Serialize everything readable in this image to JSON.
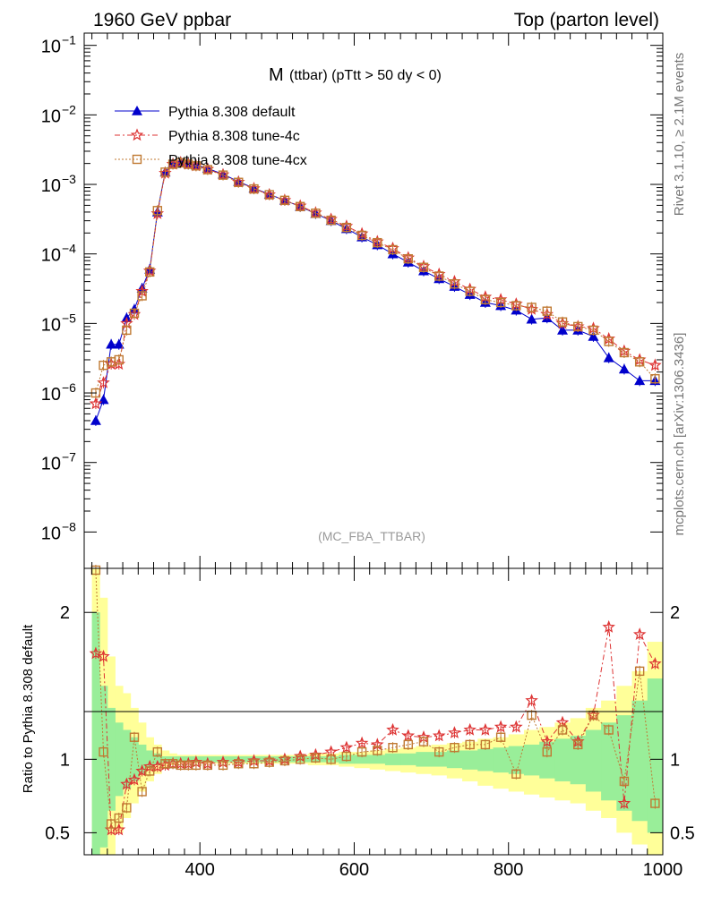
{
  "header": {
    "left": "1960 GeV ppbar",
    "right": "Top (parton level)"
  },
  "side_labels": {
    "rivet": "Rivet 3.1.10, ≥ 2.1M events",
    "source": "mcplots.cern.ch [arXiv:1306.3436]"
  },
  "plot_title": {
    "main": "M",
    "sub": "(ttbar) (pTtt > 50 dy < 0)"
  },
  "watermark": "(MC_FBA_TTBAR)",
  "ratio_ylabel": "Ratio to Pythia 8.308 default",
  "chart_data": [
    {
      "type": "line",
      "panel": "main",
      "yscale": "log",
      "xlim": [
        250,
        1000
      ],
      "ylim": [
        3e-09,
        0.15
      ],
      "yticks": [
        {
          "value": 1e-08,
          "label": "10",
          "exp": "−8"
        },
        {
          "value": 1e-07,
          "label": "10",
          "exp": "−7"
        },
        {
          "value": 1e-06,
          "label": "10",
          "exp": "−6"
        },
        {
          "value": 1e-05,
          "label": "10",
          "exp": "−5"
        },
        {
          "value": 0.0001,
          "label": "10",
          "exp": "−4"
        },
        {
          "value": 0.001,
          "label": "10",
          "exp": "−3"
        },
        {
          "value": 0.01,
          "label": "10",
          "exp": "−2"
        },
        {
          "value": 0.1,
          "label": "10",
          "exp": "−1"
        }
      ],
      "legend_position": "top-left",
      "series": [
        {
          "name": "Pythia 8.308 default",
          "color": "#0000cc",
          "marker": "triangle",
          "x": [
            265,
            275,
            285,
            295,
            305,
            315,
            325,
            335,
            345,
            355,
            365,
            375,
            385,
            395,
            410,
            430,
            450,
            470,
            490,
            510,
            530,
            550,
            570,
            590,
            610,
            630,
            650,
            670,
            690,
            710,
            730,
            750,
            770,
            790,
            810,
            830,
            850,
            870,
            890,
            910,
            930,
            950,
            970,
            990
          ],
          "y": [
            4e-07,
            8e-07,
            5e-06,
            5e-06,
            1.2e-05,
            1.6e-05,
            3.2e-05,
            6e-05,
            0.0004,
            0.0015,
            0.002,
            0.0021,
            0.002,
            0.0019,
            0.0017,
            0.0014,
            0.0011,
            0.00088,
            0.00072,
            0.00059,
            0.00048,
            0.00038,
            0.0003,
            0.00023,
            0.000175,
            0.000135,
            0.0001,
            7.6e-05,
            5.7e-05,
            4.4e-05,
            3.4e-05,
            2.6e-05,
            2e-05,
            1.8e-05,
            1.55e-05,
            1.15e-05,
            1.2e-05,
            8e-06,
            8e-06,
            6.5e-06,
            3.2e-06,
            2.2e-06,
            1.5e-06,
            1.5e-06
          ]
        },
        {
          "name": "Pythia 8.308 tune-4c",
          "color": "#dd3333",
          "marker": "star",
          "x": [
            265,
            275,
            285,
            295,
            305,
            315,
            325,
            335,
            345,
            355,
            365,
            375,
            385,
            395,
            410,
            430,
            450,
            470,
            490,
            510,
            530,
            550,
            570,
            590,
            610,
            630,
            650,
            670,
            690,
            710,
            730,
            750,
            770,
            790,
            810,
            830,
            850,
            870,
            890,
            910,
            930,
            950,
            970,
            990
          ],
          "y": [
            7e-07,
            1.4e-06,
            2.6e-06,
            2.6e-06,
            1e-05,
            1.35e-05,
            2.9e-05,
            5.7e-05,
            0.00038,
            0.00145,
            0.00195,
            0.00205,
            0.00195,
            0.00185,
            0.00165,
            0.00138,
            0.00108,
            0.00087,
            0.00071,
            0.00059,
            0.00049,
            0.00039,
            0.000315,
            0.00025,
            0.000195,
            0.00015,
            0.00012,
            8.8e-05,
            6.6e-05,
            5.1e-05,
            4e-05,
            3.1e-05,
            2.4e-05,
            2.2e-05,
            1.9e-05,
            1.6e-05,
            1.35e-05,
            1e-05,
            9e-06,
            8.5e-06,
            6e-06,
            4e-06,
            3e-06,
            2.5e-06
          ]
        },
        {
          "name": "Pythia 8.308 tune-4cx",
          "color": "#c07a33",
          "marker": "square",
          "x": [
            265,
            275,
            285,
            295,
            305,
            315,
            325,
            335,
            345,
            355,
            365,
            375,
            385,
            395,
            410,
            430,
            450,
            470,
            490,
            510,
            530,
            550,
            570,
            590,
            610,
            630,
            650,
            670,
            690,
            710,
            730,
            750,
            770,
            790,
            810,
            830,
            850,
            870,
            890,
            910,
            930,
            950,
            970,
            990
          ],
          "y": [
            1e-06,
            2.5e-06,
            2.8e-06,
            3e-06,
            8e-06,
            1.4e-05,
            2.5e-05,
            5.5e-05,
            0.00042,
            0.0015,
            0.00195,
            0.00205,
            0.00195,
            0.00185,
            0.00163,
            0.00136,
            0.00107,
            0.00086,
            0.00071,
            0.00059,
            0.00048,
            0.000385,
            0.000305,
            0.00024,
            0.000185,
            0.000145,
            0.000115,
            8.5e-05,
            6.4e-05,
            4.8e-05,
            3.7e-05,
            2.9e-05,
            2.2e-05,
            2e-05,
            1.8e-05,
            1.7e-05,
            1.5e-05,
            1.05e-05,
            9e-06,
            8e-06,
            5.5e-06,
            3.8e-06,
            2.8e-06,
            1.6e-06
          ]
        }
      ]
    },
    {
      "type": "line",
      "panel": "ratio",
      "xlim": [
        250,
        1000
      ],
      "ylim": [
        0.35,
        2.3
      ],
      "xticks": [
        {
          "value": 400,
          "label": "400"
        },
        {
          "value": 600,
          "label": "600"
        },
        {
          "value": 800,
          "label": "800"
        },
        {
          "value": 1000,
          "label": "1000"
        }
      ],
      "yticks": [
        {
          "value": 0.5,
          "label": "0.5"
        },
        {
          "value": 1,
          "label": "1"
        },
        {
          "value": 2,
          "label": "2"
        }
      ],
      "bands": {
        "x_edges": [
          260,
          270,
          280,
          290,
          300,
          310,
          320,
          330,
          340,
          350,
          360,
          370,
          380,
          390,
          400,
          420,
          440,
          460,
          480,
          500,
          520,
          540,
          560,
          580,
          600,
          620,
          640,
          660,
          680,
          700,
          720,
          740,
          760,
          780,
          800,
          820,
          840,
          860,
          880,
          900,
          920,
          940,
          960,
          980,
          1000
        ],
        "yellow_hi": [
          2.3,
          2.1,
          1.7,
          1.5,
          1.45,
          1.35,
          1.25,
          1.15,
          1.1,
          1.06,
          1.04,
          1.03,
          1.03,
          1.03,
          1.03,
          1.03,
          1.03,
          1.03,
          1.03,
          1.03,
          1.03,
          1.04,
          1.04,
          1.05,
          1.05,
          1.06,
          1.07,
          1.08,
          1.09,
          1.1,
          1.11,
          1.12,
          1.14,
          1.15,
          1.17,
          1.2,
          1.22,
          1.25,
          1.28,
          1.35,
          1.4,
          1.5,
          1.6,
          1.8
        ],
        "yellow_lo": [
          0.35,
          0.35,
          0.35,
          0.5,
          0.6,
          0.7,
          0.78,
          0.85,
          0.9,
          0.94,
          0.96,
          0.97,
          0.97,
          0.97,
          0.97,
          0.97,
          0.97,
          0.97,
          0.97,
          0.97,
          0.97,
          0.96,
          0.96,
          0.95,
          0.94,
          0.93,
          0.92,
          0.91,
          0.9,
          0.89,
          0.87,
          0.85,
          0.82,
          0.8,
          0.78,
          0.76,
          0.74,
          0.72,
          0.7,
          0.65,
          0.6,
          0.5,
          0.42,
          0.35
        ],
        "green_hi": [
          2.0,
          1.5,
          1.35,
          1.25,
          1.2,
          1.15,
          1.1,
          1.06,
          1.04,
          1.02,
          1.02,
          1.02,
          1.02,
          1.02,
          1.02,
          1.02,
          1.02,
          1.02,
          1.02,
          1.02,
          1.02,
          1.02,
          1.02,
          1.03,
          1.03,
          1.03,
          1.04,
          1.04,
          1.05,
          1.05,
          1.06,
          1.06,
          1.07,
          1.08,
          1.09,
          1.1,
          1.12,
          1.14,
          1.16,
          1.2,
          1.25,
          1.3,
          1.4,
          1.55
        ],
        "green_lo": [
          0.35,
          0.4,
          0.65,
          0.75,
          0.8,
          0.85,
          0.9,
          0.94,
          0.96,
          0.98,
          0.98,
          0.98,
          0.98,
          0.98,
          0.98,
          0.98,
          0.98,
          0.98,
          0.98,
          0.98,
          0.98,
          0.98,
          0.98,
          0.97,
          0.97,
          0.97,
          0.96,
          0.96,
          0.95,
          0.95,
          0.94,
          0.93,
          0.92,
          0.91,
          0.9,
          0.89,
          0.87,
          0.85,
          0.83,
          0.78,
          0.72,
          0.65,
          0.58,
          0.5
        ]
      },
      "series": [
        {
          "name": "Pythia 8.308 tune-4c",
          "color": "#dd3333",
          "marker": "star",
          "x": [
            265,
            275,
            285,
            295,
            305,
            315,
            325,
            335,
            345,
            355,
            365,
            375,
            385,
            395,
            410,
            430,
            450,
            470,
            490,
            510,
            530,
            550,
            570,
            590,
            610,
            630,
            650,
            670,
            690,
            710,
            730,
            750,
            770,
            790,
            810,
            830,
            850,
            870,
            890,
            910,
            930,
            950,
            970,
            990
          ],
          "y": [
            1.72,
            1.7,
            0.52,
            0.52,
            0.83,
            0.86,
            0.92,
            0.95,
            0.95,
            0.96,
            0.97,
            0.97,
            0.97,
            0.98,
            0.97,
            0.98,
            0.98,
            0.99,
            0.99,
            1.0,
            1.02,
            1.03,
            1.05,
            1.08,
            1.11,
            1.1,
            1.2,
            1.16,
            1.15,
            1.16,
            1.18,
            1.2,
            1.2,
            1.22,
            1.22,
            1.4,
            1.12,
            1.25,
            1.12,
            1.3,
            1.9,
            0.7,
            1.85,
            1.65
          ]
        },
        {
          "name": "Pythia 8.308 tune-4cx",
          "color": "#c07a33",
          "marker": "square",
          "x": [
            265,
            275,
            285,
            295,
            305,
            315,
            325,
            335,
            345,
            355,
            365,
            375,
            385,
            395,
            410,
            430,
            450,
            470,
            490,
            510,
            530,
            550,
            570,
            590,
            610,
            630,
            650,
            670,
            690,
            710,
            730,
            750,
            770,
            790,
            810,
            830,
            850,
            870,
            890,
            910,
            930,
            950,
            970,
            990
          ],
          "y": [
            2.5,
            1.05,
            0.56,
            0.6,
            0.67,
            1.15,
            0.78,
            0.92,
            1.05,
            0.97,
            0.97,
            0.96,
            0.96,
            0.96,
            0.96,
            0.96,
            0.97,
            0.97,
            0.98,
            0.99,
            1.0,
            1.01,
            1.0,
            1.02,
            1.05,
            1.06,
            1.08,
            1.1,
            1.12,
            1.05,
            1.08,
            1.1,
            1.1,
            1.15,
            0.9,
            1.3,
            1.05,
            1.2,
            1.1,
            1.3,
            1.2,
            0.85,
            1.6,
            0.7
          ]
        }
      ]
    }
  ]
}
